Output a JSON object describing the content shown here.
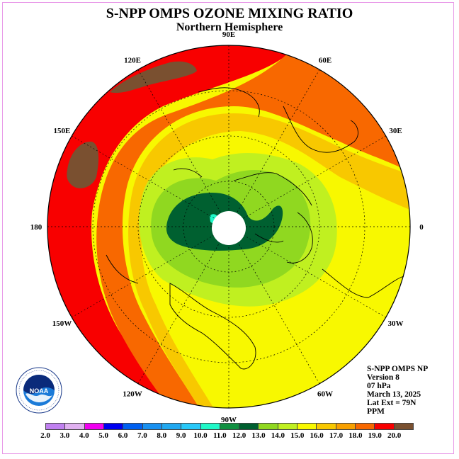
{
  "title": "S-NPP OMPS OZONE MIXING RATIO",
  "subtitle": "Northern Hemisphere",
  "info": {
    "line1": "S-NPP OMPS NP",
    "line2": "Version 8",
    "line3": "07 hPa",
    "line4": "March 13, 2025",
    "line5": "Lat Ext = 79N",
    "line6": "PPM"
  },
  "longitude_labels": [
    {
      "text": "90E",
      "lon": 90
    },
    {
      "text": "60E",
      "lon": 60
    },
    {
      "text": "30E",
      "lon": 30
    },
    {
      "text": "0",
      "lon": 0
    },
    {
      "text": "30W",
      "lon": -30
    },
    {
      "text": "60W",
      "lon": -60
    },
    {
      "text": "90W",
      "lon": -90
    },
    {
      "text": "120W",
      "lon": -120
    },
    {
      "text": "150W",
      "lon": -150
    },
    {
      "text": "180",
      "lon": 180
    },
    {
      "text": "150E",
      "lon": 150
    },
    {
      "text": "120E",
      "lon": 120
    }
  ],
  "colorbar": {
    "ticks": [
      "2.0",
      "3.0",
      "4.0",
      "5.0",
      "6.0",
      "7.0",
      "8.0",
      "9.0",
      "10.0",
      "11.0",
      "12.0",
      "13.0",
      "14.0",
      "15.0",
      "16.0",
      "17.0",
      "18.0",
      "19.0",
      "20.0"
    ],
    "colors": [
      "#c080f0",
      "#e0b0f0",
      "#f000f0",
      "#0000f0",
      "#0060f0",
      "#1890f0",
      "#20a8f0",
      "#28c8f8",
      "#20f8c8",
      "#109040",
      "#006030",
      "#90d820",
      "#c0f020",
      "#f8f800",
      "#f8c800",
      "#f8a000",
      "#f86800",
      "#f80000",
      "#7a5030"
    ]
  },
  "logo_text": "NOAA",
  "logo_ring": "NATIONAL OCEANIC AND ATMOSPHERIC ADMINISTRATION · U.S. DEPARTMENT OF COMMERCE"
}
